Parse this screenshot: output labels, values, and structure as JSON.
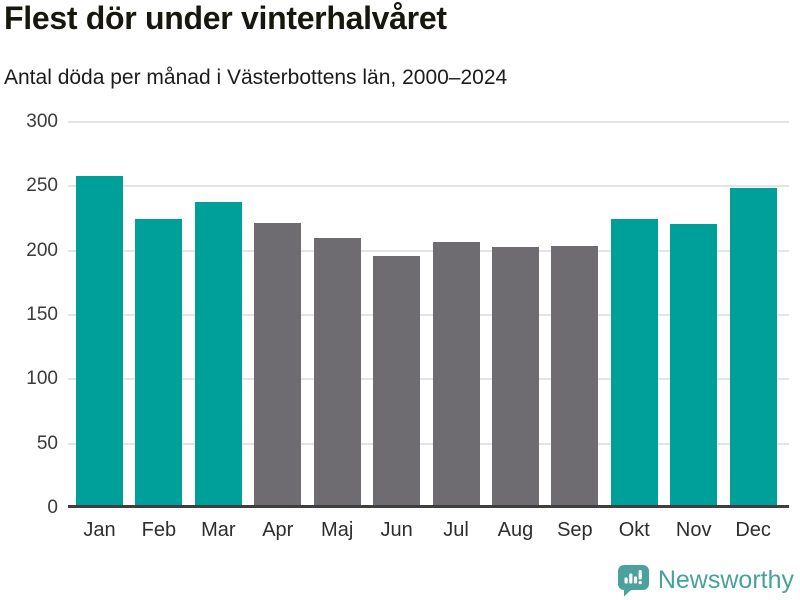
{
  "header": {
    "title": "Flest dör under vinterhalvåret",
    "subtitle": "Antal döda per månad i Västerbottens län, 2000–2024"
  },
  "chart_data": {
    "type": "bar",
    "title": "Flest dör under vinterhalvåret",
    "subtitle": "Antal döda per månad i Västerbottens län, 2000–2024",
    "categories": [
      "Jan",
      "Feb",
      "Mar",
      "Apr",
      "Maj",
      "Jun",
      "Jul",
      "Aug",
      "Sep",
      "Okt",
      "Nov",
      "Dec"
    ],
    "values": [
      257,
      224,
      237,
      221,
      209,
      195,
      206,
      202,
      203,
      224,
      220,
      248
    ],
    "highlight": [
      true,
      true,
      true,
      false,
      false,
      false,
      false,
      false,
      false,
      true,
      true,
      true
    ],
    "colors": {
      "highlight": "#00a09a",
      "normal": "#6e6c71",
      "gridline": "#e4e4e4",
      "axis": "#3f3f3f"
    },
    "xlabel": "",
    "ylabel": "",
    "ylim": [
      0,
      300
    ],
    "yticks": [
      0,
      50,
      100,
      150,
      200,
      250,
      300
    ],
    "grid": true,
    "legend": "none"
  },
  "footer": {
    "brand": "Newsworthy",
    "brand_color": "#48a29c",
    "logo_icon": "speech-bubble-bar-chart-exclamation"
  }
}
